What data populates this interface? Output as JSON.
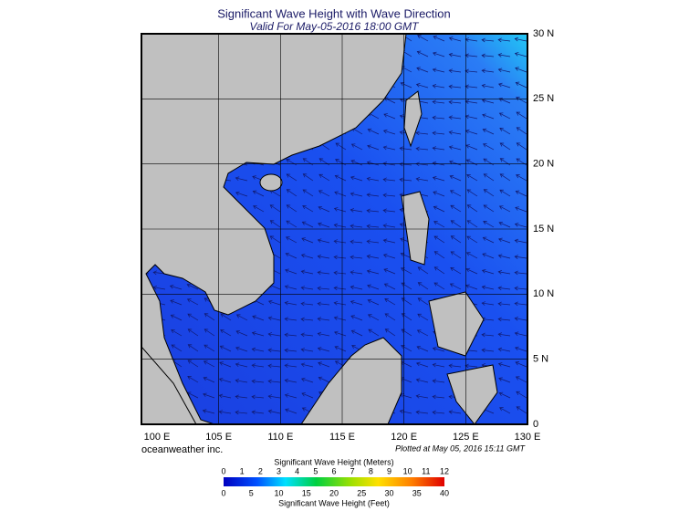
{
  "map": {
    "title": "Significant Wave Height with Wave Direction",
    "subtitle": "Valid For May-05-2016 18:00 GMT",
    "lat_labels": [
      "30 N",
      "25 N",
      "20 N",
      "15 N",
      "10 N",
      "5 N",
      "0"
    ],
    "lon_labels": [
      "100 E",
      "105 E",
      "110 E",
      "115 E",
      "120 E",
      "125 E",
      "130 E"
    ],
    "credit": "oceanweather inc.",
    "plotted": "Plotted at May 05, 2016 15:11 GMT"
  },
  "colorbar": {
    "meters_title": "Significant Wave Height (Meters)",
    "meters_ticks": [
      "0",
      "1",
      "2",
      "3",
      "4",
      "5",
      "6",
      "7",
      "8",
      "9",
      "10",
      "11",
      "12"
    ],
    "feet_ticks": [
      "0",
      "5",
      "10",
      "15",
      "20",
      "25",
      "30",
      "35",
      "40"
    ],
    "feet_title": "Significant Wave Height (Feet)"
  }
}
